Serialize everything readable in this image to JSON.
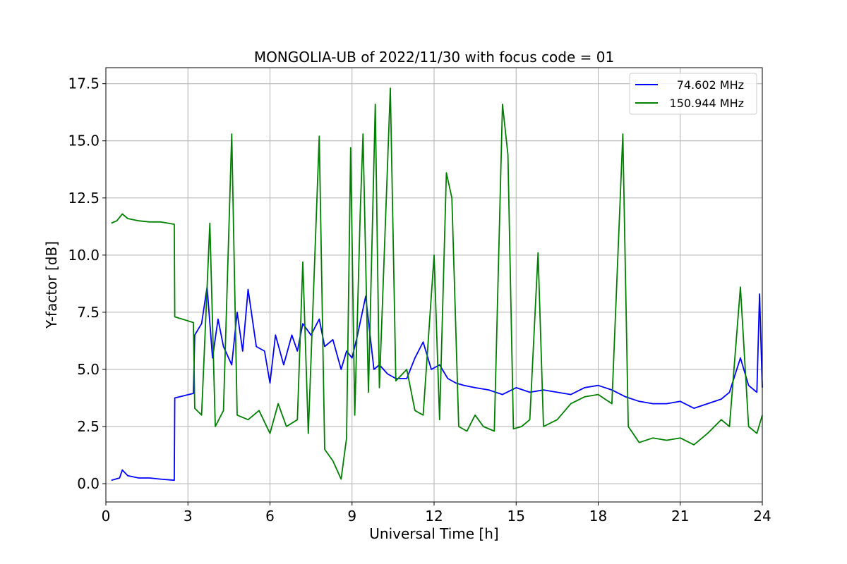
{
  "chart_data": {
    "type": "line",
    "title": "MONGOLIA-UB of 2022/11/30 with focus code = 01",
    "xlabel": "Universal Time [h]",
    "ylabel": "Y-factor [dB]",
    "xlim": [
      0,
      24
    ],
    "ylim": [
      -0.8,
      18.2
    ],
    "xticks": [
      0,
      3,
      6,
      9,
      12,
      15,
      18,
      21,
      24
    ],
    "xtick_labels": [
      "0",
      "3",
      "6",
      "9",
      "12",
      "15",
      "18",
      "21",
      "24"
    ],
    "yticks": [
      0.0,
      2.5,
      5.0,
      7.5,
      10.0,
      12.5,
      15.0,
      17.5
    ],
    "ytick_labels": [
      "0.0",
      "2.5",
      "5.0",
      "7.5",
      "10.0",
      "12.5",
      "15.0",
      "17.5"
    ],
    "grid": true,
    "legend_position": "upper right",
    "series": [
      {
        "name": "74.602 MHz",
        "color": "#0000ff",
        "points": [
          [
            0.2,
            0.15
          ],
          [
            0.5,
            0.25
          ],
          [
            0.6,
            0.6
          ],
          [
            0.8,
            0.35
          ],
          [
            1.2,
            0.25
          ],
          [
            1.6,
            0.25
          ],
          [
            2.0,
            0.2
          ],
          [
            2.5,
            0.15
          ],
          [
            2.52,
            3.75
          ],
          [
            3.2,
            3.95
          ],
          [
            3.25,
            6.5
          ],
          [
            3.5,
            7.0
          ],
          [
            3.7,
            8.6
          ],
          [
            3.9,
            5.5
          ],
          [
            4.1,
            7.2
          ],
          [
            4.3,
            6.0
          ],
          [
            4.6,
            5.2
          ],
          [
            4.8,
            7.5
          ],
          [
            5.0,
            5.8
          ],
          [
            5.2,
            8.5
          ],
          [
            5.5,
            6.0
          ],
          [
            5.8,
            5.8
          ],
          [
            6.0,
            4.4
          ],
          [
            6.2,
            6.5
          ],
          [
            6.5,
            5.2
          ],
          [
            6.8,
            6.5
          ],
          [
            7.0,
            5.8
          ],
          [
            7.2,
            7.0
          ],
          [
            7.5,
            6.5
          ],
          [
            7.8,
            7.2
          ],
          [
            8.0,
            6.0
          ],
          [
            8.3,
            6.3
          ],
          [
            8.6,
            5.0
          ],
          [
            8.8,
            5.8
          ],
          [
            9.0,
            5.5
          ],
          [
            9.2,
            6.5
          ],
          [
            9.5,
            8.2
          ],
          [
            9.8,
            5.0
          ],
          [
            10.0,
            5.2
          ],
          [
            10.3,
            4.8
          ],
          [
            10.6,
            4.6
          ],
          [
            11.0,
            4.6
          ],
          [
            11.3,
            5.5
          ],
          [
            11.6,
            6.2
          ],
          [
            11.9,
            5.0
          ],
          [
            12.2,
            5.2
          ],
          [
            12.5,
            4.6
          ],
          [
            12.8,
            4.4
          ],
          [
            13.1,
            4.3
          ],
          [
            13.5,
            4.2
          ],
          [
            14.0,
            4.1
          ],
          [
            14.5,
            3.9
          ],
          [
            15.0,
            4.2
          ],
          [
            15.5,
            4.0
          ],
          [
            16.0,
            4.1
          ],
          [
            16.5,
            4.0
          ],
          [
            17.0,
            3.9
          ],
          [
            17.5,
            4.2
          ],
          [
            18.0,
            4.3
          ],
          [
            18.5,
            4.1
          ],
          [
            19.0,
            3.8
          ],
          [
            19.5,
            3.6
          ],
          [
            20.0,
            3.5
          ],
          [
            20.5,
            3.5
          ],
          [
            21.0,
            3.6
          ],
          [
            21.5,
            3.3
          ],
          [
            22.0,
            3.5
          ],
          [
            22.5,
            3.7
          ],
          [
            22.8,
            4.0
          ],
          [
            23.2,
            5.5
          ],
          [
            23.5,
            4.3
          ],
          [
            23.8,
            4.0
          ],
          [
            23.9,
            8.3
          ],
          [
            24.0,
            4.2
          ]
        ]
      },
      {
        "name": "150.944 MHz",
        "color": "#008000",
        "points": [
          [
            0.2,
            11.4
          ],
          [
            0.4,
            11.5
          ],
          [
            0.6,
            11.8
          ],
          [
            0.8,
            11.6
          ],
          [
            1.2,
            11.5
          ],
          [
            1.6,
            11.45
          ],
          [
            2.0,
            11.45
          ],
          [
            2.5,
            11.35
          ],
          [
            2.52,
            7.3
          ],
          [
            3.2,
            7.05
          ],
          [
            3.25,
            3.3
          ],
          [
            3.5,
            3.0
          ],
          [
            3.8,
            11.4
          ],
          [
            4.0,
            2.5
          ],
          [
            4.3,
            3.2
          ],
          [
            4.6,
            15.3
          ],
          [
            4.8,
            3.0
          ],
          [
            5.2,
            2.8
          ],
          [
            5.6,
            3.2
          ],
          [
            6.0,
            2.2
          ],
          [
            6.3,
            3.5
          ],
          [
            6.6,
            2.5
          ],
          [
            7.0,
            2.8
          ],
          [
            7.2,
            9.7
          ],
          [
            7.4,
            2.2
          ],
          [
            7.8,
            15.2
          ],
          [
            8.0,
            1.5
          ],
          [
            8.3,
            1.0
          ],
          [
            8.6,
            0.2
          ],
          [
            8.8,
            2.0
          ],
          [
            8.95,
            14.7
          ],
          [
            9.1,
            3.0
          ],
          [
            9.3,
            11.9
          ],
          [
            9.4,
            15.3
          ],
          [
            9.6,
            4.0
          ],
          [
            9.85,
            16.6
          ],
          [
            10.0,
            4.2
          ],
          [
            10.4,
            17.3
          ],
          [
            10.6,
            4.5
          ],
          [
            11.0,
            5.0
          ],
          [
            11.3,
            3.2
          ],
          [
            11.6,
            3.0
          ],
          [
            12.0,
            10.0
          ],
          [
            12.2,
            2.8
          ],
          [
            12.45,
            13.6
          ],
          [
            12.65,
            12.5
          ],
          [
            12.9,
            2.5
          ],
          [
            13.2,
            2.3
          ],
          [
            13.5,
            3.0
          ],
          [
            13.8,
            2.5
          ],
          [
            14.2,
            2.3
          ],
          [
            14.5,
            16.6
          ],
          [
            14.7,
            14.4
          ],
          [
            14.9,
            2.4
          ],
          [
            15.2,
            2.5
          ],
          [
            15.5,
            2.8
          ],
          [
            15.8,
            10.1
          ],
          [
            16.0,
            2.5
          ],
          [
            16.5,
            2.8
          ],
          [
            17.0,
            3.5
          ],
          [
            17.5,
            3.8
          ],
          [
            18.0,
            3.9
          ],
          [
            18.5,
            3.5
          ],
          [
            18.9,
            15.3
          ],
          [
            19.1,
            2.5
          ],
          [
            19.5,
            1.8
          ],
          [
            20.0,
            2.0
          ],
          [
            20.5,
            1.9
          ],
          [
            21.0,
            2.0
          ],
          [
            21.5,
            1.7
          ],
          [
            22.0,
            2.2
          ],
          [
            22.5,
            2.8
          ],
          [
            22.8,
            2.5
          ],
          [
            23.2,
            8.6
          ],
          [
            23.5,
            2.5
          ],
          [
            23.8,
            2.2
          ],
          [
            24.0,
            3.0
          ]
        ]
      }
    ]
  }
}
